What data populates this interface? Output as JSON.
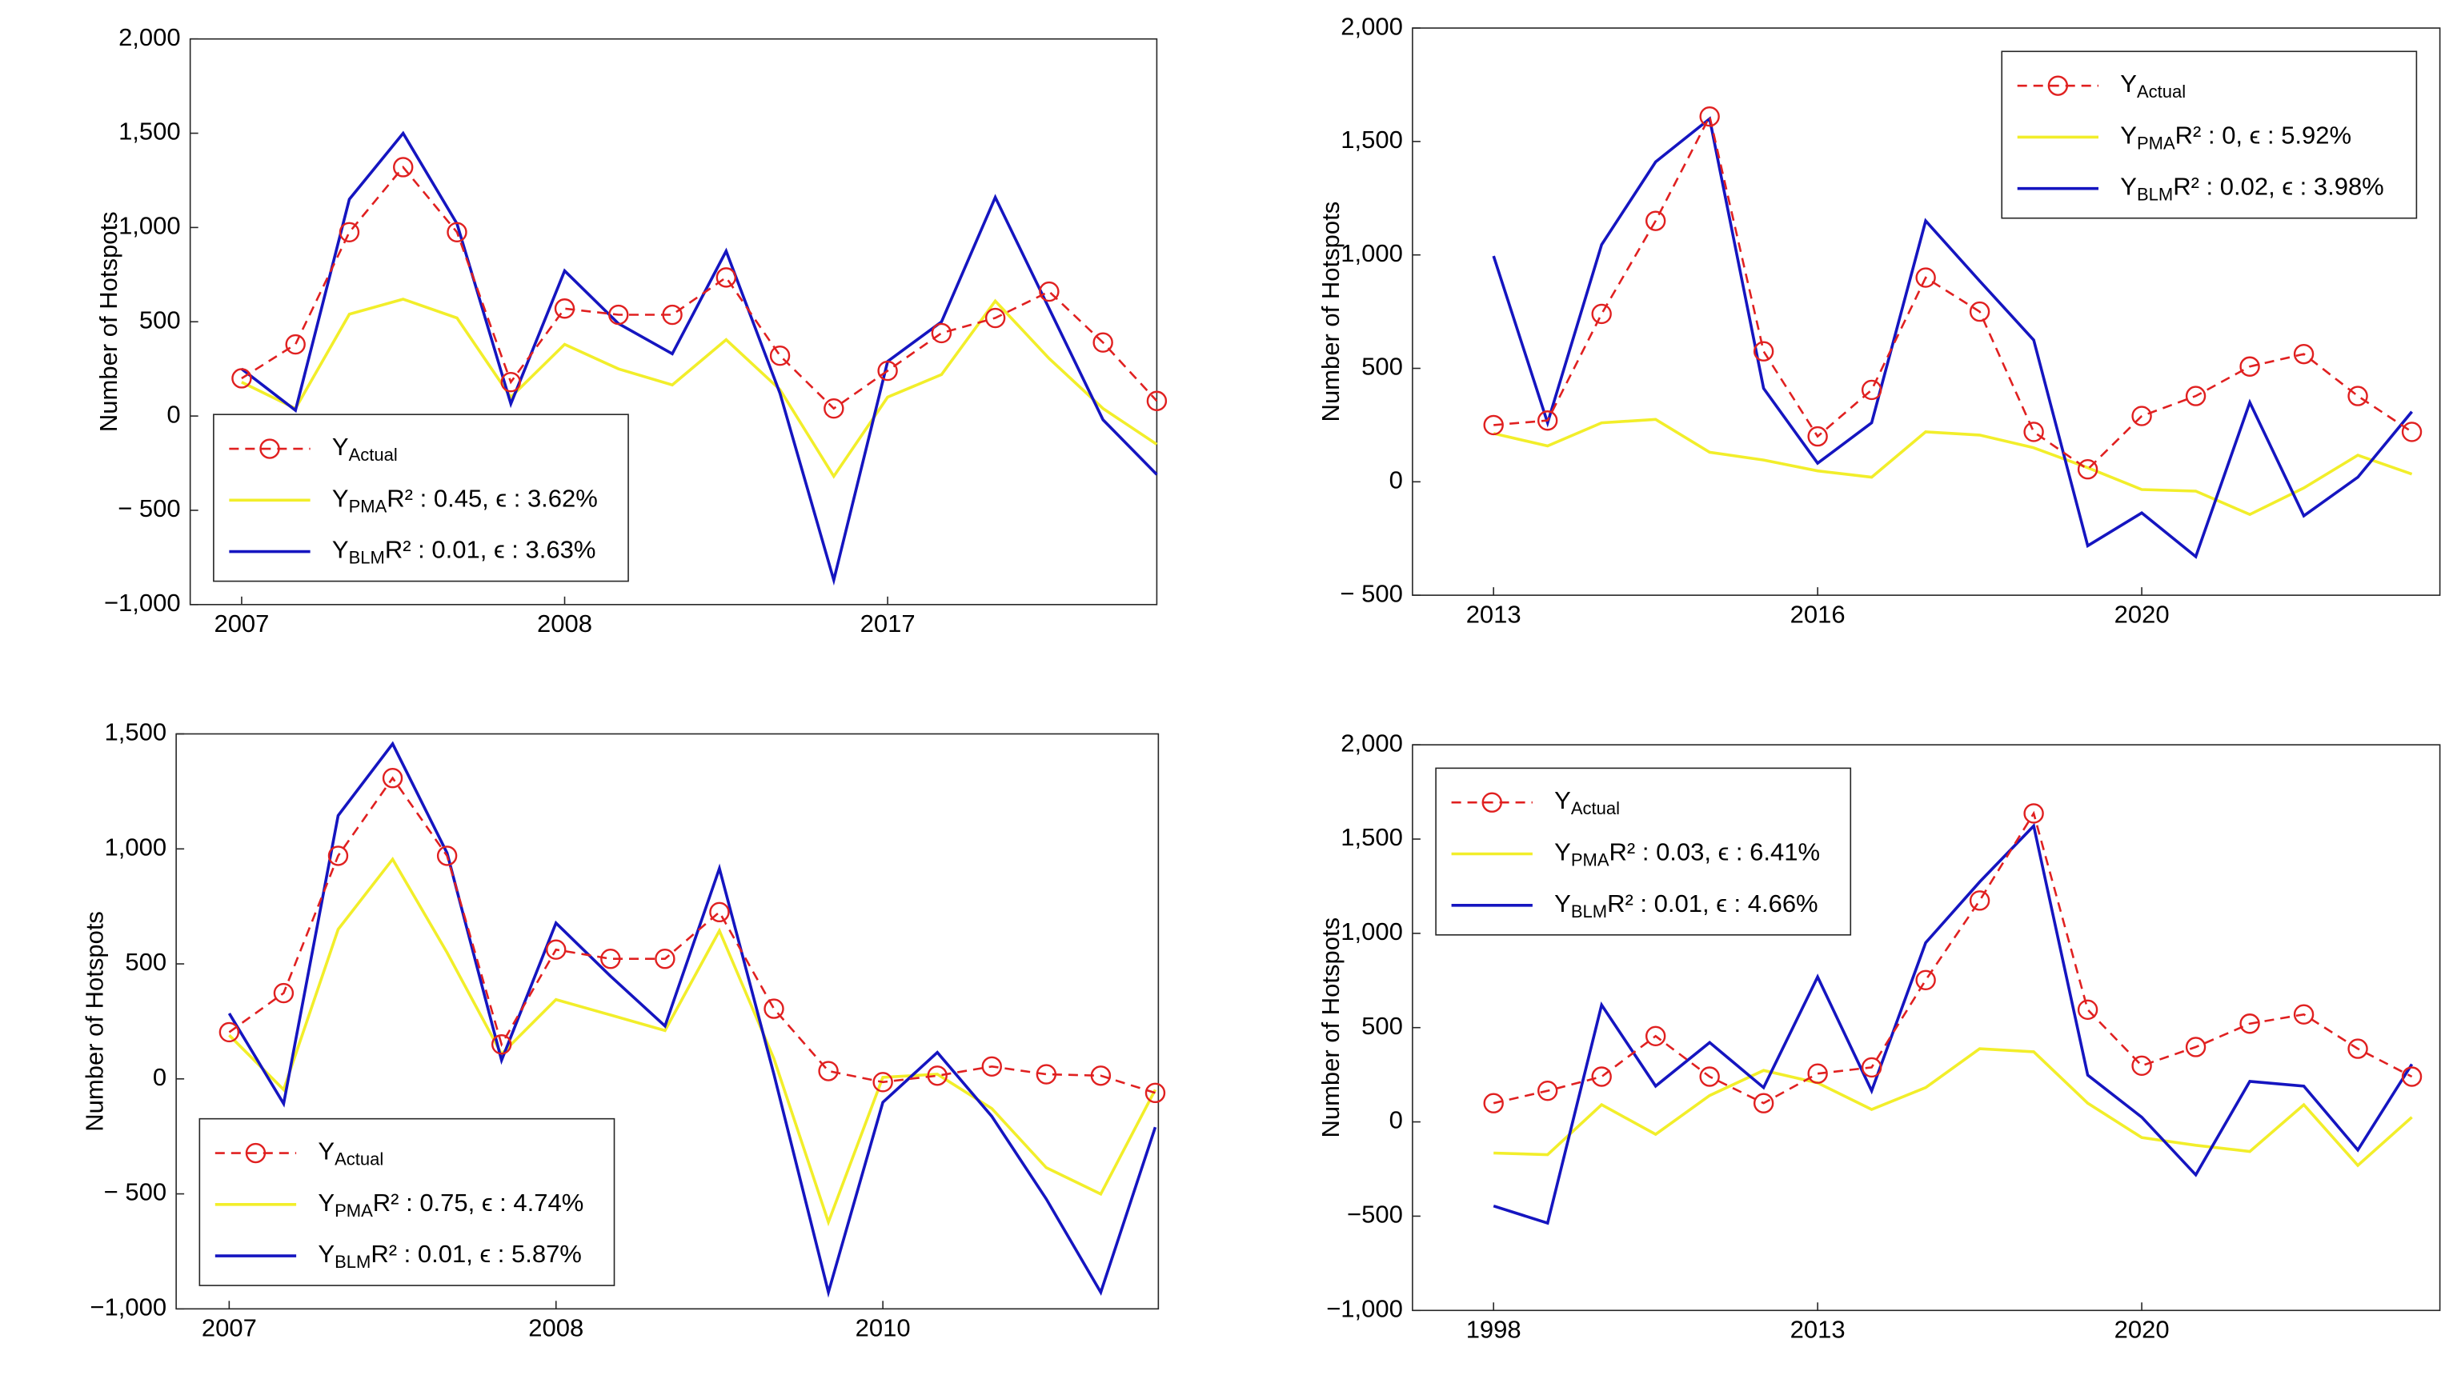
{
  "chart_data": [
    {
      "type": "line",
      "ylabel": "Number of Hotspots",
      "legend_loc": "lower left",
      "categories": [
        "2007",
        null,
        null,
        null,
        null,
        null,
        "2008",
        null,
        null,
        null,
        null,
        null,
        "2017",
        null,
        null,
        null,
        null,
        null
      ],
      "ylim": [
        -1000,
        2000
      ],
      "yticks": [
        {
          "value": -1000,
          "label": "−1,000"
        },
        {
          "value": -500,
          "label": "− 500"
        },
        0,
        500,
        {
          "value": 1000,
          "label": "1,000"
        },
        {
          "value": 1500,
          "label": "1,500"
        },
        {
          "value": 2000,
          "label": "2,000"
        }
      ],
      "series": [
        {
          "name": "Y",
          "subscript": "Actual",
          "color": "#e02020",
          "values": [
            200,
            380,
            975,
            1320,
            975,
            180,
            570,
            537,
            537,
            735,
            320,
            40,
            240,
            440,
            520,
            660,
            390,
            80
          ]
        },
        {
          "name": "Y",
          "subscript": "PMA",
          "stat": "R² : 0.45, ϵ : 3.62%",
          "color": "#f2ee2a",
          "values": [
            180,
            40,
            540,
            620,
            520,
            100,
            380,
            250,
            165,
            405,
            140,
            -320,
            100,
            220,
            610,
            305,
            40,
            -150
          ]
        },
        {
          "name": "Y",
          "subscript": "BLM",
          "stat": "R² : 0.01, ϵ : 3.63%",
          "color": "#1515c0",
          "values": [
            250,
            30,
            1150,
            1500,
            1020,
            65,
            770,
            490,
            330,
            875,
            120,
            -870,
            290,
            500,
            1160,
            570,
            -20,
            -310
          ]
        }
      ]
    },
    {
      "type": "line",
      "ylabel": "Number of Hotspots",
      "legend_loc": "upper right",
      "categories": [
        "2013",
        null,
        null,
        null,
        null,
        null,
        "2016",
        null,
        null,
        null,
        null,
        null,
        "2020",
        null,
        null,
        null,
        null,
        null
      ],
      "ylim": [
        -500,
        2000
      ],
      "yticks": [
        {
          "value": -500,
          "label": "− 500"
        },
        0,
        500,
        {
          "value": 1000,
          "label": "1,000"
        },
        {
          "value": 1500,
          "label": "1,500"
        },
        {
          "value": 2000,
          "label": "2,000"
        }
      ],
      "series": [
        {
          "name": "Y",
          "subscript": "Actual",
          "color": "#e02020",
          "values": [
            250,
            270,
            740,
            1150,
            1610,
            575,
            200,
            405,
            900,
            750,
            220,
            55,
            290,
            378,
            508,
            563,
            378,
            220
          ]
        },
        {
          "name": "Y",
          "subscript": "PMA",
          "stat": "R² : 0, ϵ : 5.92%",
          "color": "#f2ee2a",
          "values": [
            213,
            158,
            260,
            275,
            130,
            96,
            48,
            20,
            220,
            206,
            150,
            62,
            -34,
            -41,
            -144,
            -27,
            117,
            34
          ]
        },
        {
          "name": "Y",
          "subscript": "BLM",
          "stat": "R² : 0.02, ϵ : 3.98%",
          "color": "#1515c0",
          "values": [
            995,
            260,
            1045,
            1410,
            1600,
            412,
            82,
            260,
            1150,
            885,
            625,
            -282,
            -137,
            -330,
            350,
            -150,
            20,
            309
          ]
        }
      ]
    },
    {
      "type": "line",
      "ylabel": "Number of Hotspots",
      "legend_loc": "lower left",
      "categories": [
        "2007",
        null,
        null,
        null,
        null,
        null,
        "2008",
        null,
        null,
        null,
        null,
        null,
        "2010",
        null,
        null,
        null,
        null,
        null
      ],
      "ylim": [
        -1000,
        1500
      ],
      "yticks": [
        {
          "value": -1000,
          "label": "−1,000"
        },
        {
          "value": -500,
          "label": "− 500"
        },
        0,
        500,
        {
          "value": 1000,
          "label": "1,000"
        },
        {
          "value": 1500,
          "label": "1,500"
        }
      ],
      "series": [
        {
          "name": "Y",
          "subscript": "Actual",
          "color": "#e02020",
          "values": [
            203,
            373,
            970,
            1308,
            970,
            150,
            562,
            522,
            522,
            725,
            305,
            34,
            -14,
            14,
            54,
            20,
            14,
            -61
          ]
        },
        {
          "name": "Y",
          "subscript": "PMA",
          "stat": "R² : 0.75, ϵ : 4.74%",
          "color": "#f2ee2a",
          "values": [
            190,
            -47,
            650,
            955,
            549,
            108,
            345,
            278,
            210,
            644,
            88,
            -623,
            7,
            20,
            -129,
            -386,
            -501,
            -47
          ]
        },
        {
          "name": "Y",
          "subscript": "BLM",
          "stat": "R² : 0.01, ϵ : 5.87%",
          "color": "#1515c0",
          "values": [
            285,
            -108,
            1145,
            1457,
            982,
            81,
            678,
            447,
            230,
            915,
            20,
            -928,
            -102,
            115,
            -163,
            -522,
            -928,
            -210
          ]
        }
      ]
    },
    {
      "type": "line",
      "ylabel": "Number of Hotspots",
      "legend_loc": "upper left",
      "categories": [
        "1998",
        null,
        null,
        null,
        null,
        null,
        "2013",
        null,
        null,
        null,
        null,
        null,
        "2020",
        null,
        null,
        null,
        null,
        null
      ],
      "ylim": [
        -1000,
        2000
      ],
      "yticks": [
        {
          "value": -1000,
          "label": "−1,000"
        },
        {
          "value": -500,
          "label": "−500"
        },
        0,
        500,
        {
          "value": 1000,
          "label": "1,000"
        },
        {
          "value": 1500,
          "label": "1,500"
        },
        {
          "value": 2000,
          "label": "2,000"
        }
      ],
      "series": [
        {
          "name": "Y",
          "subscript": "Actual",
          "color": "#e02020",
          "values": [
            99,
            165,
            240,
            455,
            240,
            99,
            256,
            289,
            752,
            1174,
            1636,
            595,
            298,
            397,
            521,
            570,
            388,
            240
          ]
        },
        {
          "name": "Y",
          "subscript": "PMA",
          "stat": "R² : 0.03, ϵ : 6.41%",
          "color": "#f2ee2a",
          "values": [
            -165,
            -174,
            91,
            -66,
            140,
            273,
            207,
            66,
            182,
            388,
            372,
            99,
            -83,
            -124,
            -157,
            91,
            -231,
            25
          ]
        },
        {
          "name": "Y",
          "subscript": "BLM",
          "stat": "R² : 0.01, ϵ : 4.66%",
          "color": "#1515c0",
          "values": [
            -446,
            -537,
            620,
            190,
            421,
            182,
            769,
            165,
            950,
            1273,
            1570,
            248,
            25,
            -281,
            215,
            190,
            -149,
            306
          ]
        }
      ]
    }
  ]
}
